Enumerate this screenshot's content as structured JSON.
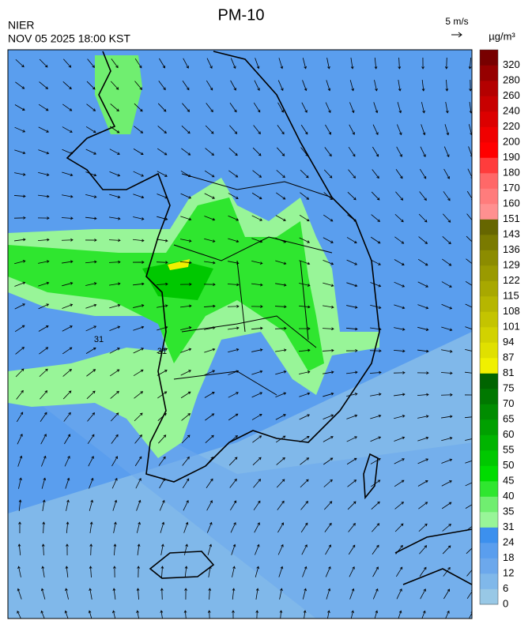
{
  "header": {
    "title": "PM-10",
    "agency": "NIER",
    "datetime": "NOV 05 2025 18:00 KST"
  },
  "wind_legend": {
    "label": "5 m/s"
  },
  "colorbar": {
    "unit": "µg/m³",
    "labels": [
      0,
      6,
      12,
      18,
      24,
      31,
      35,
      40,
      45,
      50,
      55,
      60,
      65,
      70,
      75,
      81,
      87,
      94,
      101,
      108,
      115,
      122,
      129,
      136,
      143,
      151,
      160,
      170,
      180,
      190,
      200,
      220,
      240,
      260,
      280,
      320
    ],
    "colors": [
      "#98c8e6",
      "#80b8ea",
      "#6ca8ec",
      "#5a9eee",
      "#3c90ee",
      "#98f598",
      "#70ee70",
      "#2fe62f",
      "#00dc00",
      "#00c800",
      "#00b400",
      "#00a000",
      "#008c00",
      "#007800",
      "#006400",
      "#f0f000",
      "#e0e000",
      "#d2d200",
      "#c4c400",
      "#b6b600",
      "#a8a800",
      "#9a9a00",
      "#8c8c00",
      "#7a7a00",
      "#666600",
      "#ff9090",
      "#ff7c7c",
      "#ff6868",
      "#ff3c3c",
      "#ff0000",
      "#f00000",
      "#dc0000",
      "#c80000",
      "#b40000",
      "#960000",
      "#780000"
    ]
  },
  "map": {
    "contour_labels": [
      31,
      31
    ]
  }
}
